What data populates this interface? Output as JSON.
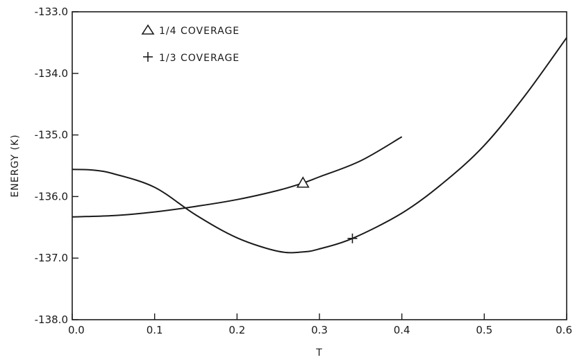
{
  "chart_data": {
    "type": "line",
    "xlabel": "T",
    "ylabel": "ENERGY (K)",
    "xlim": [
      0.0,
      0.6
    ],
    "ylim": [
      -138.0,
      -133.0
    ],
    "x_ticks": [
      "0.0",
      "0.1",
      "0.2",
      "0.3",
      "0.4",
      "0.5",
      "0.6"
    ],
    "y_ticks": [
      "-133.0",
      "-134.0",
      "-135.0",
      "-136.0",
      "-137.0",
      "-138.0"
    ],
    "grid": false,
    "legend_position": "top-left",
    "series": [
      {
        "name": "1/4 COVERAGE",
        "marker": "triangle",
        "marker_at": {
          "x": 0.28,
          "y": -135.78
        },
        "points": [
          {
            "x": 0.0,
            "y": -136.33
          },
          {
            "x": 0.05,
            "y": -136.31
          },
          {
            "x": 0.1,
            "y": -136.25
          },
          {
            "x": 0.15,
            "y": -136.16
          },
          {
            "x": 0.2,
            "y": -136.05
          },
          {
            "x": 0.25,
            "y": -135.9
          },
          {
            "x": 0.28,
            "y": -135.78
          },
          {
            "x": 0.3,
            "y": -135.68
          },
          {
            "x": 0.35,
            "y": -135.42
          },
          {
            "x": 0.4,
            "y": -135.03
          }
        ]
      },
      {
        "name": "1/3 COVERAGE",
        "marker": "plus",
        "marker_at": {
          "x": 0.34,
          "y": -136.68
        },
        "points": [
          {
            "x": 0.0,
            "y": -135.56
          },
          {
            "x": 0.025,
            "y": -135.57
          },
          {
            "x": 0.05,
            "y": -135.63
          },
          {
            "x": 0.1,
            "y": -135.85
          },
          {
            "x": 0.15,
            "y": -136.3
          },
          {
            "x": 0.2,
            "y": -136.67
          },
          {
            "x": 0.25,
            "y": -136.89
          },
          {
            "x": 0.28,
            "y": -136.9
          },
          {
            "x": 0.3,
            "y": -136.85
          },
          {
            "x": 0.34,
            "y": -136.68
          },
          {
            "x": 0.4,
            "y": -136.27
          },
          {
            "x": 0.45,
            "y": -135.78
          },
          {
            "x": 0.5,
            "y": -135.17
          },
          {
            "x": 0.55,
            "y": -134.35
          },
          {
            "x": 0.6,
            "y": -133.42
          }
        ]
      }
    ]
  },
  "legend": {
    "items": [
      {
        "label": "1/4 COVERAGE",
        "marker": "triangle"
      },
      {
        "label": "1/3 COVERAGE",
        "marker": "plus"
      }
    ]
  }
}
